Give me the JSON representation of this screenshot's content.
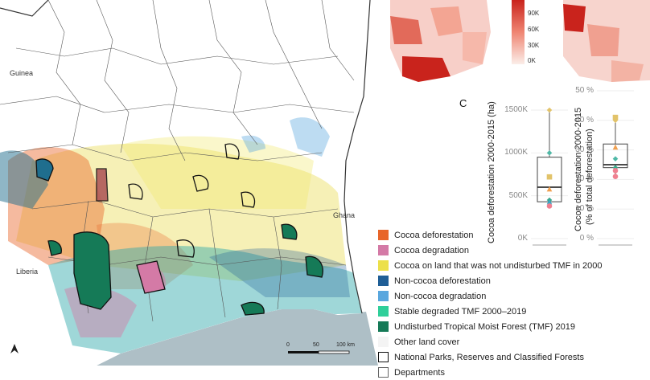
{
  "map": {
    "country_labels": {
      "guinea": "Guinea",
      "liberia": "Liberia",
      "ghana": "Ghana"
    },
    "scale_bar": {
      "labels": [
        "0",
        "50",
        "100 km"
      ]
    },
    "north_arrow": "north-arrow-icon"
  },
  "inset_colorbar": {
    "labels": [
      "90K",
      "60K",
      "30K",
      "0K"
    ]
  },
  "panel_c": {
    "letter": "C"
  },
  "legend": [
    {
      "label": "Cocoa deforestation",
      "color": "#e8662a"
    },
    {
      "label": "Cocoa degradation",
      "color": "#d47aa6"
    },
    {
      "label": "Cocoa on land that was not undisturbed TMF in 2000",
      "color": "#ece04a"
    },
    {
      "label": "Non-cocoa deforestation",
      "color": "#1f5e96"
    },
    {
      "label": "Non-cocoa degradation",
      "color": "#5aa7de"
    },
    {
      "label": "Stable degraded TMF 2000–2019",
      "color": "#2fcf9a"
    },
    {
      "label": "Undisturbed Tropical Moist Forest (TMF) 2019",
      "color": "#157a57"
    },
    {
      "label": "Other land cover",
      "color": "#f4f4f4"
    },
    {
      "label": "National Parks, Reserves and Classified Forests",
      "color": "#ffffff"
    },
    {
      "label": "Departments",
      "color": "#ffffff"
    }
  ],
  "chart_data": [
    {
      "type": "box",
      "ylabel": "Cocoa deforestation 2000-2015 (ha)",
      "ylim": [
        0,
        1500000
      ],
      "yticks": [
        "0K",
        "500K",
        "1000K",
        "1500K"
      ],
      "box": {
        "min": 380000,
        "q1": 430000,
        "median": 600000,
        "q3": 950000,
        "max": 1500000
      },
      "points": [
        {
          "y": 1500000,
          "color": "#e2c36a",
          "shape": "diamond"
        },
        {
          "y": 1000000,
          "color": "#4fb8a6",
          "shape": "diamond"
        },
        {
          "y": 720000,
          "color": "#e2c36a",
          "shape": "square"
        },
        {
          "y": 580000,
          "color": "#f0a050",
          "shape": "triangle"
        },
        {
          "y": 450000,
          "color": "#3aa88a",
          "shape": "diamond"
        },
        {
          "y": 430000,
          "color": "#3aa8c8",
          "shape": "triangle"
        },
        {
          "y": 380000,
          "color": "#f08090",
          "shape": "circle"
        }
      ]
    },
    {
      "type": "box",
      "ylabel": "Cocoa deforestation 2000-2015",
      "ylabel2": "(% of total deforestation)",
      "ylim": [
        0,
        50
      ],
      "yticks": [
        "0 %",
        "10 %",
        "20 %",
        "30 %",
        "40 %",
        "50 %"
      ],
      "box": {
        "min": 21,
        "q1": 24,
        "median": 25,
        "q3": 32,
        "max": 41
      },
      "points": [
        {
          "y": 41,
          "color": "#e2c36a",
          "shape": "square"
        },
        {
          "y": 40,
          "color": "#e2c36a",
          "shape": "diamond"
        },
        {
          "y": 31,
          "color": "#f0a050",
          "shape": "triangle"
        },
        {
          "y": 27,
          "color": "#4fb8a6",
          "shape": "diamond"
        },
        {
          "y": 24,
          "color": "#3aa88a",
          "shape": "diamond"
        },
        {
          "y": 23,
          "color": "#f08090",
          "shape": "circle"
        },
        {
          "y": 21,
          "color": "#f08090",
          "shape": "circle"
        }
      ]
    }
  ]
}
